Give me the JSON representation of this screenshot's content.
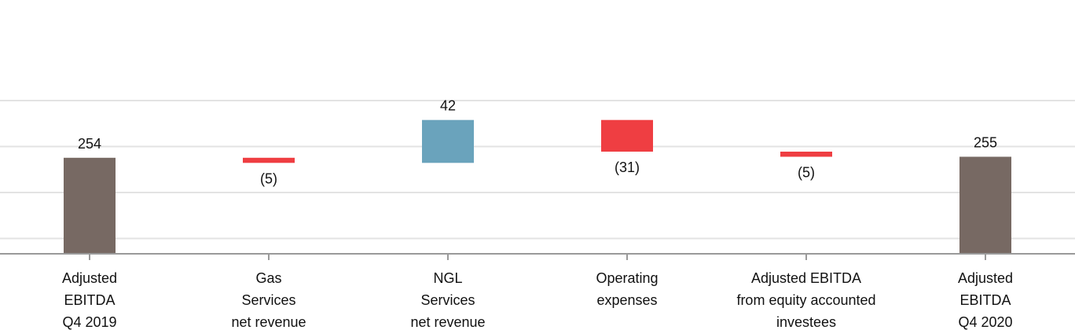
{
  "chart_data": {
    "type": "waterfall",
    "title": "",
    "xlabel": "",
    "ylabel": "",
    "ylim": [
      160,
      310
    ],
    "grid": true,
    "categories": [
      [
        "Adjusted",
        "EBITDA",
        "Q4 2019"
      ],
      [
        "Gas",
        "Services",
        "net revenue"
      ],
      [
        "NGL",
        "Services",
        "net revenue"
      ],
      [
        "Operating",
        "expenses"
      ],
      [
        "Adjusted EBITDA",
        "from equity accounted",
        "investees"
      ],
      [
        "Adjusted",
        "EBITDA",
        "Q4 2020"
      ]
    ],
    "items": [
      {
        "kind": "total",
        "value": 254,
        "label": "254"
      },
      {
        "kind": "delta",
        "value": -5,
        "label": "(5)"
      },
      {
        "kind": "delta",
        "value": 42,
        "label": "42"
      },
      {
        "kind": "delta",
        "value": -31,
        "label": "(31)"
      },
      {
        "kind": "delta",
        "value": -5,
        "label": "(5)"
      },
      {
        "kind": "total",
        "value": 255,
        "label": "255"
      }
    ],
    "colors": {
      "total": "#776963",
      "increase": "#6aa3bc",
      "decrease": "#ef3e42",
      "grid": "#e3e3e3",
      "axis": "#9a9a9a"
    }
  }
}
